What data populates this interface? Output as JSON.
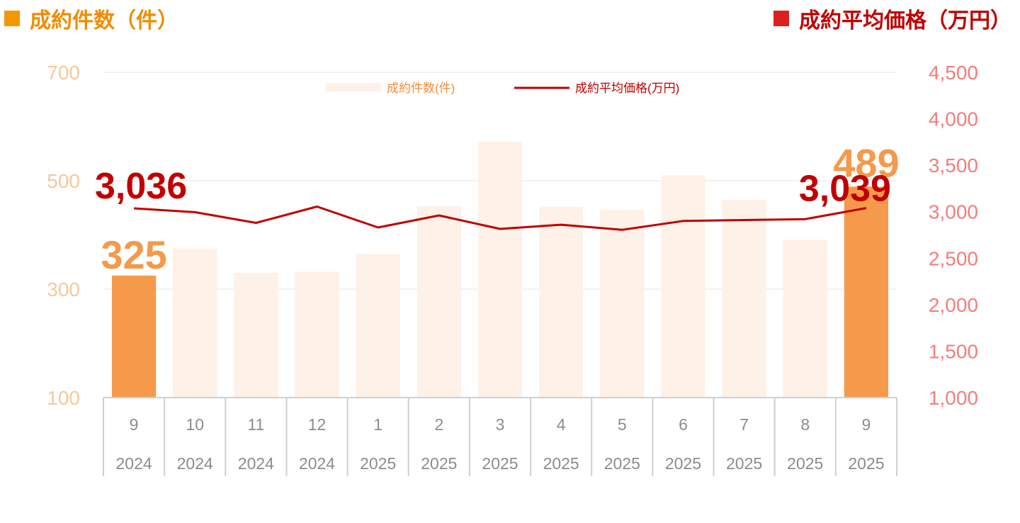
{
  "header": {
    "left_title": "成約件数（件）",
    "right_title": "成約平均価格（万円）",
    "left_color": "#f39800",
    "right_color": "#dd1f1f"
  },
  "chart_data": {
    "type": "bar",
    "categories": [
      {
        "month": "9",
        "year": "2024"
      },
      {
        "month": "10",
        "year": "2024"
      },
      {
        "month": "11",
        "year": "2024"
      },
      {
        "month": "12",
        "year": "2024"
      },
      {
        "month": "1",
        "year": "2025"
      },
      {
        "month": "2",
        "year": "2025"
      },
      {
        "month": "3",
        "year": "2025"
      },
      {
        "month": "4",
        "year": "2025"
      },
      {
        "month": "5",
        "year": "2025"
      },
      {
        "month": "6",
        "year": "2025"
      },
      {
        "month": "7",
        "year": "2025"
      },
      {
        "month": "8",
        "year": "2025"
      },
      {
        "month": "9",
        "year": "2025"
      }
    ],
    "series": [
      {
        "name": "成約件数(件)",
        "type": "bar",
        "axis": "left",
        "values": [
          325,
          375,
          330,
          332,
          365,
          453,
          572,
          452,
          446,
          510,
          465,
          391,
          489
        ],
        "color": "#fdf1e8",
        "highlight_color": "#f5994a",
        "highlight_indices": [
          0,
          12
        ]
      },
      {
        "name": "成約平均価格(万円)",
        "type": "line",
        "axis": "right",
        "values": [
          3036,
          2995,
          2880,
          3055,
          2830,
          2960,
          2815,
          2860,
          2805,
          2900,
          2910,
          2920,
          3039
        ],
        "color": "#c00000"
      }
    ],
    "left_axis": {
      "ylim": [
        100,
        700
      ],
      "ticks": [
        "100",
        "300",
        "500",
        "700"
      ]
    },
    "right_axis": {
      "ylim": [
        1000,
        4500
      ],
      "ticks": [
        "1,000",
        "1,500",
        "2,000",
        "2,500",
        "3,000",
        "3,500",
        "4,000",
        "4,500"
      ]
    },
    "annotations": {
      "first_bar_label": "325",
      "last_bar_label": "489",
      "first_line_label": "3,036",
      "last_line_label": "3,039"
    },
    "legend": {
      "position": "top-center",
      "bar_label": "成約件数(件)",
      "line_label": "成約平均価格(万円)"
    },
    "grid": true
  }
}
